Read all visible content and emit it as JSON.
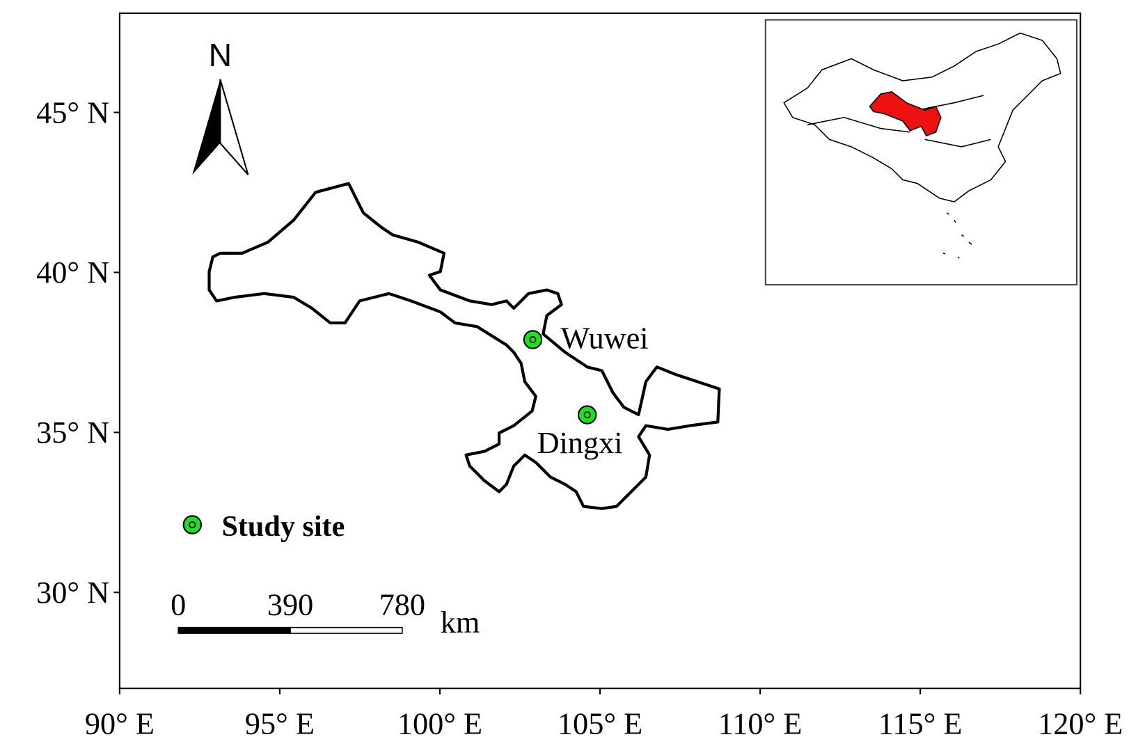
{
  "chart_data": {
    "type": "map",
    "xlim": [
      90,
      120
    ],
    "ylim": [
      27,
      48.1
    ],
    "xticks": [
      {
        "value": 90,
        "label": "90° E"
      },
      {
        "value": 95,
        "label": "95° E"
      },
      {
        "value": 100,
        "label": "100° E"
      },
      {
        "value": 105,
        "label": "105° E"
      },
      {
        "value": 110,
        "label": "110° E"
      },
      {
        "value": 115,
        "label": "115° E"
      },
      {
        "value": 120,
        "label": "120° E"
      }
    ],
    "yticks": [
      {
        "value": 30,
        "label": "30° N"
      },
      {
        "value": 35,
        "label": "35° N"
      },
      {
        "value": 40,
        "label": "40° N"
      },
      {
        "value": 45,
        "label": "45° N"
      }
    ],
    "sites": {
      "names": [
        "Wuwei",
        "Dingxi"
      ],
      "lon": [
        102.9,
        104.6
      ],
      "lat": [
        37.9,
        35.55
      ]
    },
    "color": "#22dd22",
    "legend": "Study site",
    "north": "N",
    "scale_bar": {
      "labels": [
        0,
        390,
        780
      ],
      "unit": "km"
    }
  }
}
